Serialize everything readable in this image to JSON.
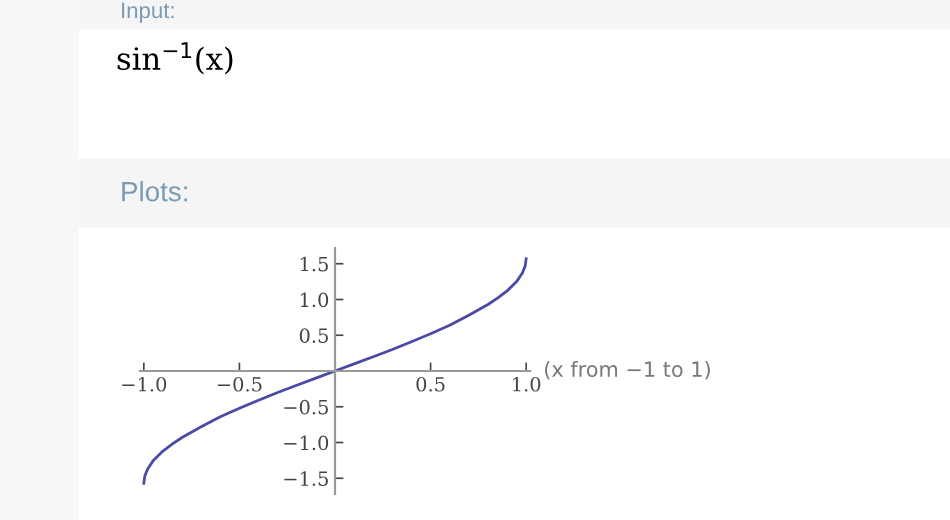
{
  "chart_data": {
    "type": "line",
    "title": "sin$^{−1}$(x)",
    "subtitle": "Plots:",
    "annotations": [
      "Input:"
    ],
    "xlabel": "(x from −1 to 1)",
    "series": [
      {
        "color": "#4a4aa6",
        "x": [
          -1.0,
          -0.995,
          -0.98,
          -0.95,
          -0.9,
          -0.85,
          -0.8,
          -0.7,
          -0.6,
          -0.5,
          -0.4,
          -0.3,
          -0.2,
          -0.1,
          0.0,
          0.1,
          0.2,
          0.3,
          0.4,
          0.5,
          0.6,
          0.7,
          0.8,
          0.85,
          0.9,
          0.95,
          0.98,
          0.995,
          1.0
        ],
        "values": [
          -1.57,
          -1.47,
          -1.37,
          -1.25,
          -1.12,
          -1.02,
          -0.93,
          -0.78,
          -0.64,
          -0.52,
          -0.41,
          -0.3,
          -0.2,
          -0.1,
          0.0,
          0.1,
          0.2,
          0.3,
          0.41,
          0.52,
          0.64,
          0.78,
          0.93,
          1.02,
          1.12,
          1.25,
          1.37,
          1.47,
          1.57
        ]
      }
    ],
    "xlim": [
      -1.02,
      1.02
    ],
    "ylim": [
      -1.72,
      1.72
    ],
    "xticks": [
      {
        "value": -1.0,
        "label": "−1.0"
      },
      {
        "value": -0.5,
        "label": "−0.5"
      },
      {
        "value": 0.5,
        "label": "0.5"
      },
      {
        "value": 1.0,
        "label": "1.0"
      }
    ],
    "yticks": [
      {
        "value": -1.5,
        "label": "−1.5"
      },
      {
        "value": -1.0,
        "label": "−1.0"
      },
      {
        "value": -0.5,
        "label": "−0.5"
      },
      {
        "value": 0.5,
        "label": "0.5"
      },
      {
        "value": 1.0,
        "label": "1.0"
      },
      {
        "value": 1.5,
        "label": "1.5"
      }
    ],
    "grid": false,
    "legend": false
  }
}
